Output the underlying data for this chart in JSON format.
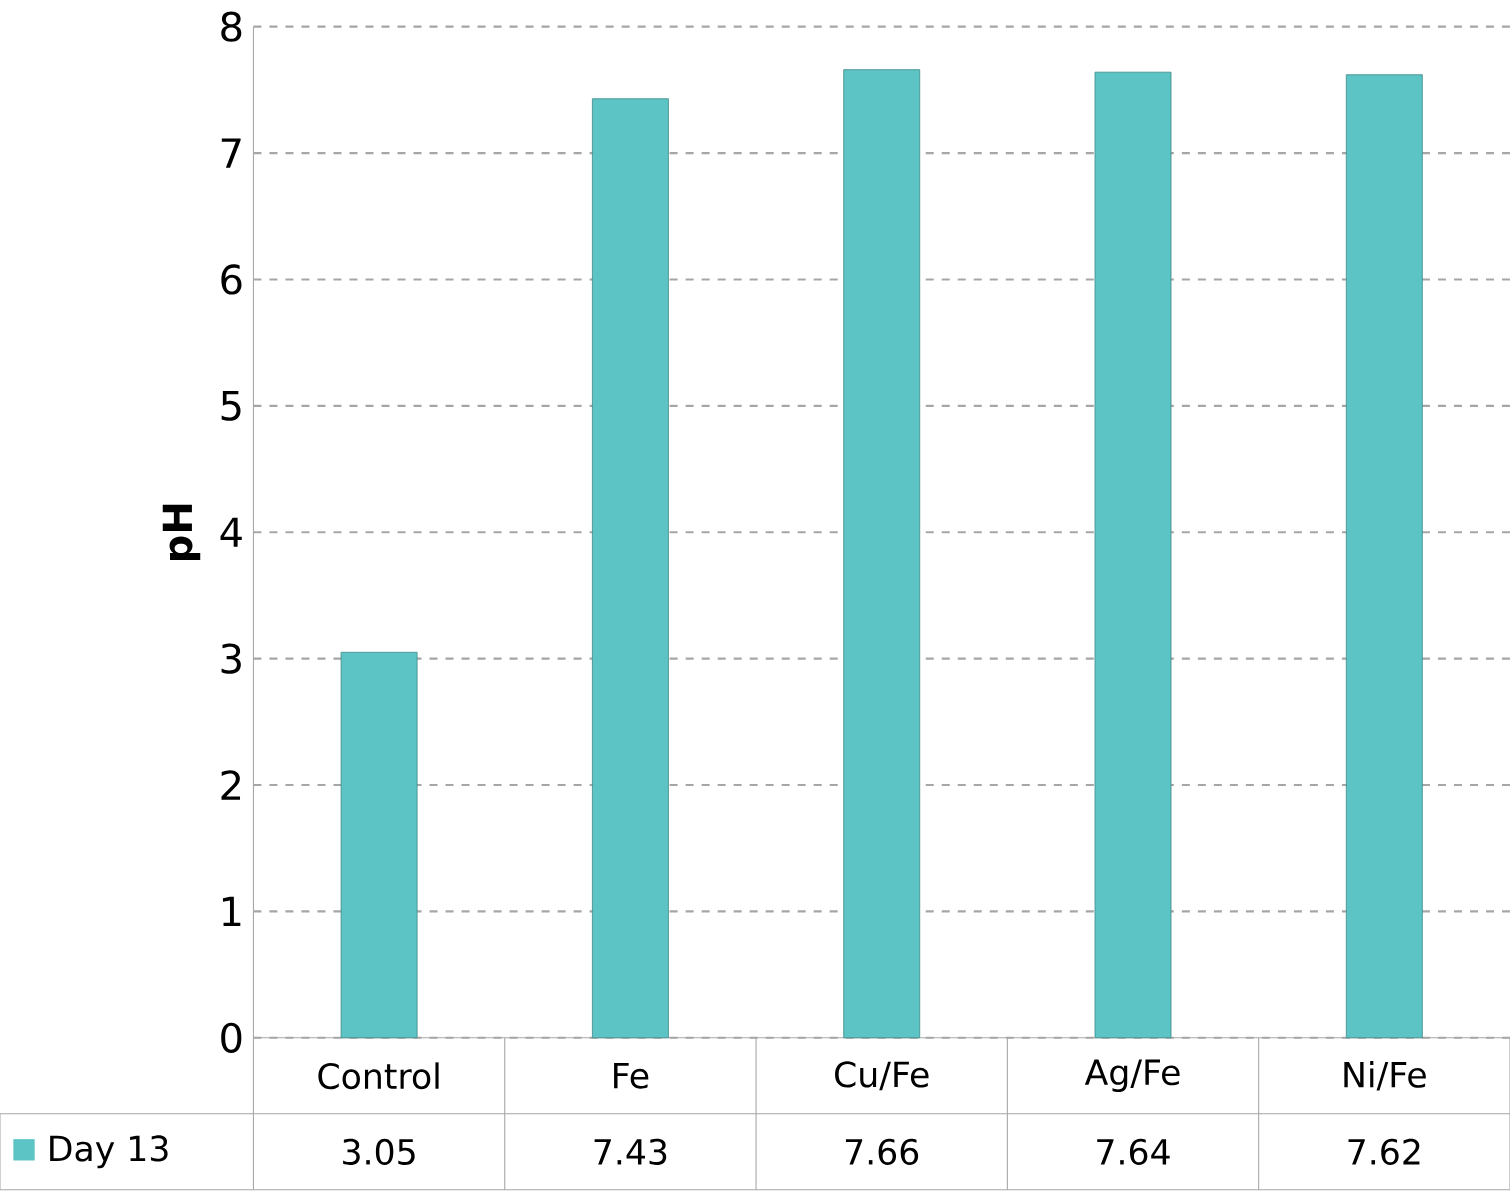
{
  "chart_data": {
    "type": "bar",
    "ylabel": "pH",
    "categories": [
      "Control",
      "Fe",
      "Cu/Fe",
      "Ag/Fe",
      "Ni/Fe"
    ],
    "series": [
      {
        "name": "Day 13",
        "color": "#5cc4c4",
        "values": [
          3.05,
          7.43,
          7.66,
          7.64,
          7.62
        ]
      }
    ],
    "ylim": [
      0,
      8
    ],
    "yticks": [
      0,
      1,
      2,
      3,
      4,
      5,
      6,
      7,
      8
    ],
    "grid": "y",
    "data_labels": true,
    "line_style": "dashed"
  }
}
